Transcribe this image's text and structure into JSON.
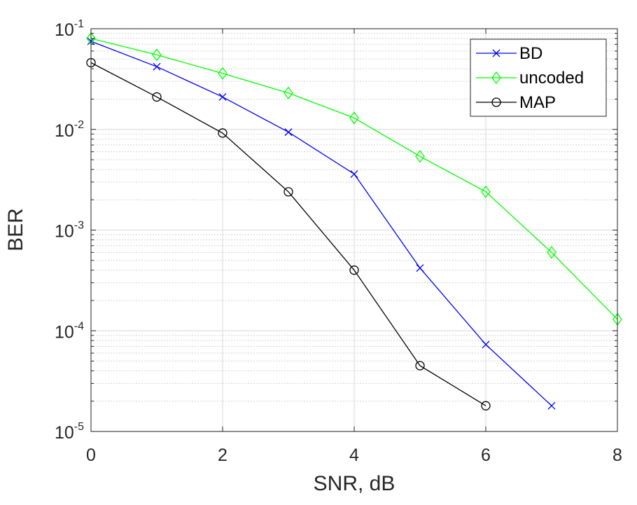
{
  "chart_data": {
    "type": "line",
    "title": "",
    "xlabel": "SNR, dB",
    "ylabel": "BER",
    "yscale": "log",
    "xlim": [
      0,
      8
    ],
    "ylim": [
      1e-05,
      0.1
    ],
    "xticks": [
      0,
      2,
      4,
      6,
      8
    ],
    "xtick_labels": [
      "0",
      "2",
      "4",
      "6",
      "8"
    ],
    "yticks": [
      {
        "value": 0.1,
        "base": "10",
        "exp": "-1"
      },
      {
        "value": 0.01,
        "base": "10",
        "exp": "-2"
      },
      {
        "value": 0.001,
        "base": "10",
        "exp": "-3"
      },
      {
        "value": 0.0001,
        "base": "10",
        "exp": "-4"
      },
      {
        "value": 1e-05,
        "base": "10",
        "exp": "-5"
      }
    ],
    "grid": true,
    "minor_grid": true,
    "legend_position": "top-right",
    "series": [
      {
        "name": "BD",
        "color": "#0000ff",
        "marker": "x",
        "x": [
          0,
          1,
          2,
          3,
          4,
          5,
          6,
          7
        ],
        "y": [
          0.075,
          0.042,
          0.021,
          0.0094,
          0.0036,
          0.00042,
          7.3e-05,
          1.8e-05
        ]
      },
      {
        "name": "uncoded",
        "color": "#00ff00",
        "marker": "diamond",
        "x": [
          0,
          1,
          2,
          3,
          4,
          5,
          6,
          7,
          8
        ],
        "y": [
          0.08,
          0.055,
          0.036,
          0.023,
          0.013,
          0.0054,
          0.0024,
          0.0006,
          0.00013
        ]
      },
      {
        "name": "MAP",
        "color": "#000000",
        "marker": "circle",
        "x": [
          0,
          1,
          2,
          3,
          4,
          5,
          6
        ],
        "y": [
          0.046,
          0.021,
          0.0092,
          0.0024,
          0.0004,
          4.5e-05,
          1.8e-05
        ]
      }
    ]
  }
}
